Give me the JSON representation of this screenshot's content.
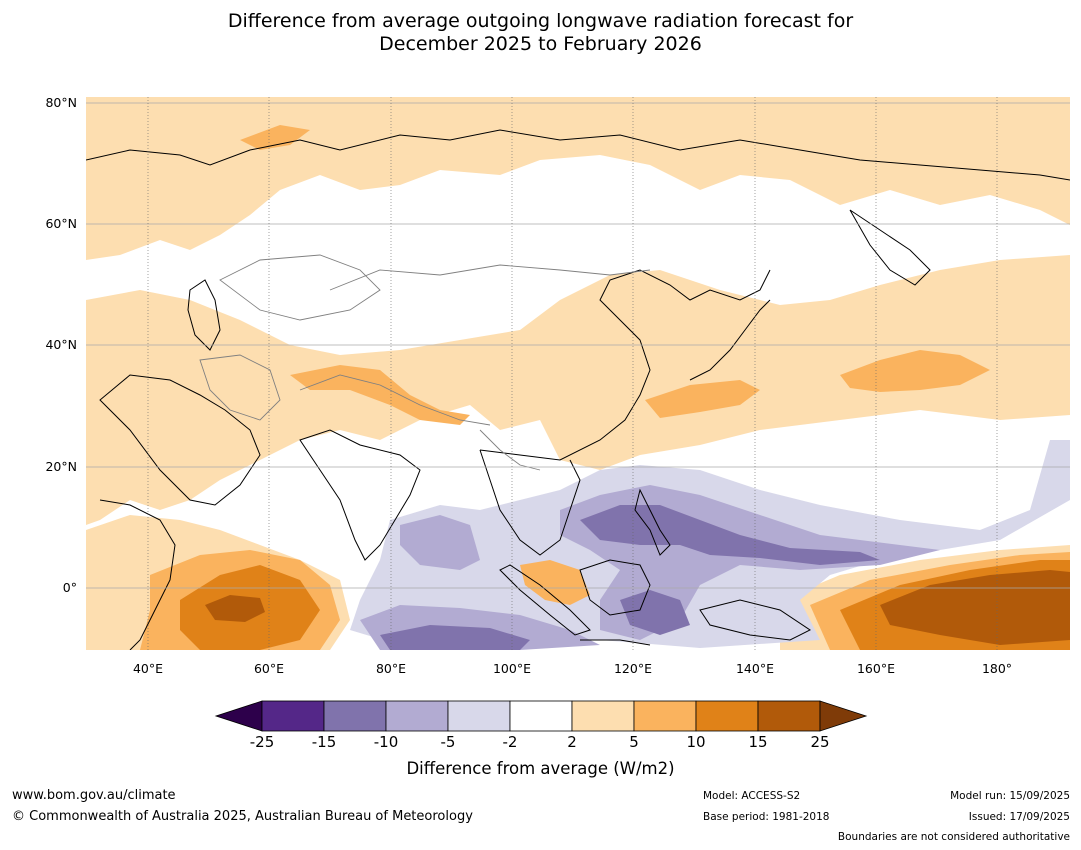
{
  "title": {
    "line1": "Difference from average outgoing longwave radiation forecast for",
    "line2": "December 2025 to February 2026"
  },
  "map": {
    "lat_labels": [
      "80°N",
      "60°N",
      "40°N",
      "20°N",
      "0°"
    ],
    "lon_labels": [
      "40°E",
      "60°E",
      "80°E",
      "100°E",
      "120°E",
      "140°E",
      "160°E",
      "180°"
    ],
    "colors": {
      "water_neutral": "#ffffff",
      "pos_2_5": "#fddeb0",
      "pos_5_10": "#fab35e",
      "pos_10_15": "#e08218",
      "pos_15_25": "#b15a0a",
      "pos_gt_25": "#7f3b08",
      "neg_2_5": "#d8d8ea",
      "neg_5_10": "#b2abd2",
      "neg_10_15": "#8073ac",
      "neg_15_25": "#542788",
      "neg_lt_25": "#2d004b",
      "coastline": "#000000",
      "borders": "#808080"
    }
  },
  "colorbar": {
    "ticks": [
      "-25",
      "-15",
      "-10",
      "-5",
      "-2",
      "2",
      "5",
      "10",
      "15",
      "25"
    ],
    "label": "Difference from average (W/m2)",
    "colors": [
      "#2d004b",
      "#542788",
      "#8073ac",
      "#b2abd2",
      "#d8d8ea",
      "#ffffff",
      "#fddeb0",
      "#fab35e",
      "#e08218",
      "#b15a0a",
      "#7f3b08"
    ]
  },
  "footer": {
    "website": "www.bom.gov.au/climate",
    "copyright": "© Commonwealth of Australia 2025, Australian Bureau of Meteorology",
    "model": "Model: ACCESS-S2",
    "base_period": "Base period: 1981-2018",
    "model_run": "Model run: 15/09/2025",
    "issued": "Issued: 17/09/2025",
    "disclaimer": "Boundaries are not considered authoritative"
  }
}
